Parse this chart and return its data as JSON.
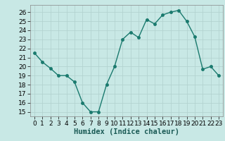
{
  "x": [
    0,
    1,
    2,
    3,
    4,
    5,
    6,
    7,
    8,
    9,
    10,
    11,
    12,
    13,
    14,
    15,
    16,
    17,
    18,
    19,
    20,
    21,
    22,
    23
  ],
  "y": [
    21.5,
    20.5,
    19.8,
    19.0,
    19.0,
    18.3,
    16.0,
    15.0,
    15.0,
    18.0,
    20.0,
    23.0,
    23.8,
    23.2,
    25.2,
    24.7,
    25.7,
    26.0,
    26.2,
    25.0,
    23.3,
    19.7,
    20.0,
    19.0
  ],
  "line_color": "#1a7a6e",
  "bg_color": "#c8e8e5",
  "grid_color": "#b0d0ce",
  "xlabel": "Humidex (Indice chaleur)",
  "xlim": [
    -0.5,
    23.5
  ],
  "ylim": [
    14.5,
    26.8
  ],
  "yticks": [
    15,
    16,
    17,
    18,
    19,
    20,
    21,
    22,
    23,
    24,
    25,
    26
  ],
  "xticks": [
    0,
    1,
    2,
    3,
    4,
    5,
    6,
    7,
    8,
    9,
    10,
    11,
    12,
    13,
    14,
    15,
    16,
    17,
    18,
    19,
    20,
    21,
    22,
    23
  ],
  "marker_size": 2.5,
  "line_width": 1.0,
  "tick_font_size": 6.5,
  "xlabel_font_size": 7.5
}
